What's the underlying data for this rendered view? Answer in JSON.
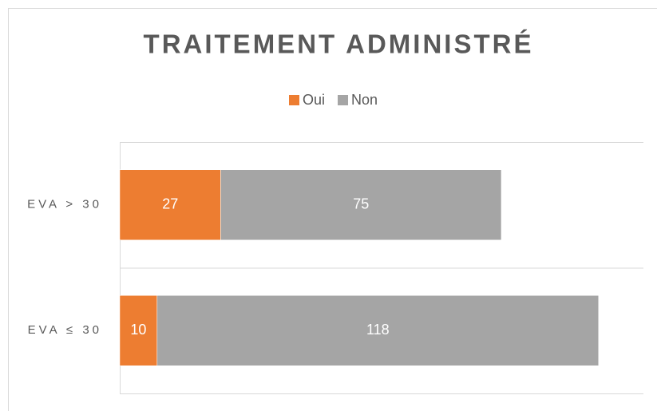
{
  "chart_data": {
    "type": "stacked-barh",
    "title": "TRAITEMENT ADMINISTRÉ",
    "categories": [
      "EVA > 30",
      "EVA ≤ 30"
    ],
    "series": [
      {
        "name": "Oui",
        "color": "#ed7d31",
        "values": [
          27,
          10
        ]
      },
      {
        "name": "Non",
        "color": "#a5a5a5",
        "values": [
          75,
          118
        ]
      }
    ],
    "xlim": [
      0,
      140
    ],
    "legend": "top"
  }
}
